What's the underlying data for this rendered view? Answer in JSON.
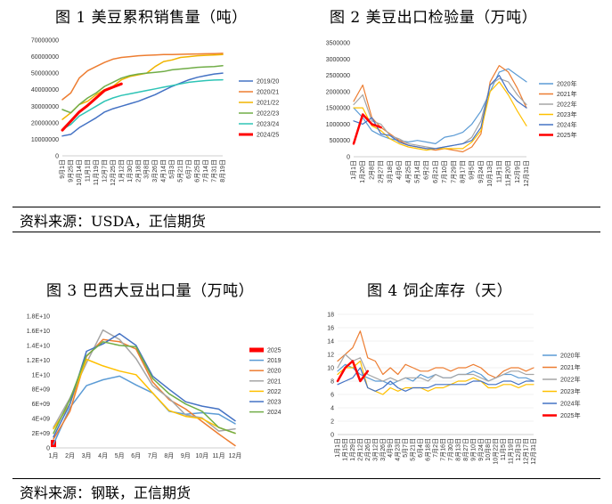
{
  "captions": {
    "fig1": "图 1  美豆累积销售量（吨）",
    "fig2": "图 2  美豆出口检验量（万吨）",
    "fig3": "图 3  巴西大豆出口量（万吨）",
    "fig4": "图 4  饲企库存（天）",
    "source_top": "资料来源：USDA，正信期货",
    "source_bottom": "资料来源：钢联，正信期货"
  },
  "chart_data": [
    {
      "id": "fig1",
      "type": "line",
      "y_ticks": [
        "70000000",
        "60000000",
        "50000000",
        "40000000",
        "30000000",
        "20000000",
        "10000000",
        "0"
      ],
      "ylim": [
        0,
        70000000
      ],
      "x_ticks": [
        "9月1日",
        "9月25日",
        "10月14日",
        "11月1日",
        "11月19日",
        "12月7日",
        "12月25日",
        "1月12日",
        "1月30日",
        "2月18日",
        "3月8日",
        "3月26日",
        "4月14日",
        "5月3日",
        "5月21日",
        "6月7日",
        "6月25日",
        "7月14日",
        "7月31日",
        "8月19日"
      ],
      "legend_position": "right",
      "series": [
        {
          "name": "2019/20",
          "color": "#4472C4",
          "width": 1.5,
          "values": [
            12000000,
            13000000,
            17000000,
            20000000,
            23000000,
            26500000,
            28500000,
            30000000,
            31500000,
            33000000,
            35000000,
            37000000,
            39500000,
            42000000,
            44000000,
            46000000,
            47500000,
            48500000,
            49500000,
            50000000
          ]
        },
        {
          "name": "2020/21",
          "color": "#ED7D31",
          "width": 1.5,
          "values": [
            34000000,
            38000000,
            47000000,
            51500000,
            54000000,
            56500000,
            58500000,
            59500000,
            60000000,
            60500000,
            60800000,
            61000000,
            61200000,
            61300000,
            61400000,
            61500000,
            61600000,
            61700000,
            61800000,
            62000000
          ]
        },
        {
          "name": "2021/22",
          "color": "#F0B400",
          "width": 1.5,
          "values": [
            22000000,
            26000000,
            31000000,
            33000000,
            37000000,
            40000000,
            42000000,
            46000000,
            48000000,
            49000000,
            50000000,
            54000000,
            57000000,
            58000000,
            59500000,
            60000000,
            60500000,
            60800000,
            61000000,
            61200000
          ]
        },
        {
          "name": "2022/23",
          "color": "#70AD47",
          "width": 1.5,
          "values": [
            28000000,
            26000000,
            31000000,
            35000000,
            38000000,
            42000000,
            44500000,
            47000000,
            48500000,
            49500000,
            50000000,
            50500000,
            51000000,
            52000000,
            52500000,
            53000000,
            53500000,
            53800000,
            54000000,
            54500000
          ]
        },
        {
          "name": "2023/24",
          "color": "#2EC4B6",
          "width": 1.5,
          "values": [
            16000000,
            19000000,
            24000000,
            27000000,
            30000000,
            33000000,
            35000000,
            36500000,
            37500000,
            38500000,
            39500000,
            40500000,
            41500000,
            42500000,
            43500000,
            44500000,
            45000000,
            45500000,
            45800000,
            46000000
          ]
        },
        {
          "name": "2024/25",
          "color": "#FF0000",
          "width": 3,
          "values": [
            15500000,
            21000000,
            26500000,
            30500000,
            35000000,
            39500000,
            41500000,
            43500000
          ]
        }
      ]
    },
    {
      "id": "fig2",
      "type": "line",
      "y_ticks": [
        "3500000",
        "3000000",
        "2500000",
        "2000000",
        "1500000",
        "1000000",
        "500000",
        "0"
      ],
      "ylim": [
        0,
        3500000
      ],
      "x_ticks": [
        "1月1日",
        "1月20日",
        "2月8日",
        "2月27日",
        "3月18日",
        "4月6日",
        "4月25日",
        "5月14日",
        "6月2日",
        "6月21日",
        "7月10日",
        "7月29日",
        "8月17日",
        "9月5日",
        "9月24日",
        "10月13日",
        "11月1日",
        "11月20日",
        "12月9日",
        "12月31日"
      ],
      "legend_position": "right",
      "series": [
        {
          "name": "2020年",
          "color": "#5B9BD5",
          "width": 1.2,
          "values": [
            1500000,
            1200000,
            800000,
            650000,
            550000,
            500000,
            450000,
            500000,
            450000,
            400000,
            600000,
            650000,
            750000,
            1000000,
            1400000,
            2000000,
            2600000,
            2700000,
            2500000,
            2300000
          ]
        },
        {
          "name": "2021年",
          "color": "#ED7D31",
          "width": 1.2,
          "values": [
            1700000,
            2200000,
            1200000,
            900000,
            700000,
            500000,
            350000,
            300000,
            250000,
            200000,
            250000,
            200000,
            150000,
            300000,
            700000,
            2300000,
            2800000,
            2600000,
            2100000,
            1500000
          ]
        },
        {
          "name": "2022年",
          "color": "#A5A5A5",
          "width": 1.2,
          "values": [
            1600000,
            1900000,
            1100000,
            1000000,
            650000,
            550000,
            400000,
            350000,
            300000,
            250000,
            300000,
            350000,
            400000,
            600000,
            1100000,
            2200000,
            2400000,
            2300000,
            1900000,
            1600000
          ]
        },
        {
          "name": "2023年",
          "color": "#FFC000",
          "width": 1.2,
          "values": [
            1500000,
            1500000,
            950000,
            800000,
            550000,
            400000,
            300000,
            250000,
            200000,
            250000,
            250000,
            250000,
            250000,
            450000,
            800000,
            2000000,
            2300000,
            1900000,
            1400000,
            950000
          ]
        },
        {
          "name": "2024年",
          "color": "#4472C4",
          "width": 1.2,
          "values": [
            1100000,
            1000000,
            1200000,
            700000,
            650000,
            450000,
            350000,
            300000,
            250000,
            250000,
            300000,
            350000,
            400000,
            500000,
            900000,
            2200000,
            2500000,
            2000000,
            1700000,
            1500000
          ]
        },
        {
          "name": "2025年",
          "color": "#FF0000",
          "width": 2.5,
          "values": [
            400000,
            1300000,
            1000000,
            900000
          ]
        }
      ]
    },
    {
      "id": "fig3",
      "type": "line",
      "y_ticks": [
        "1.8E+10",
        "1.6E+10",
        "1.4E+10",
        "1.2E+10",
        "1E+10",
        "8E+09",
        "6E+09",
        "4E+09",
        "2E+09",
        "0"
      ],
      "ylim": [
        0,
        18000000000
      ],
      "x_ticks": [
        "1月",
        "2月",
        "3月",
        "4月",
        "5月",
        "6月",
        "7月",
        "8月",
        "9月",
        "10月",
        "11月",
        "12月"
      ],
      "legend_position": "right",
      "series": [
        {
          "name": "2025",
          "color": "#FF0000",
          "width": 6,
          "values": [
            600000000
          ]
        },
        {
          "name": "2019",
          "color": "#5B9BD5",
          "width": 1.5,
          "values": [
            500000000,
            5500000000,
            8500000000,
            9300000000,
            9800000000,
            8600000000,
            7500000000,
            5000000000,
            4600000000,
            4800000000,
            4600000000,
            3300000000
          ]
        },
        {
          "name": "2020",
          "color": "#ED7D31",
          "width": 1.5,
          "values": [
            1200000000,
            5000000000,
            12500000000,
            14800000000,
            14500000000,
            13500000000,
            9000000000,
            6600000000,
            5300000000,
            3600000000,
            1900000000,
            300000000
          ]
        },
        {
          "name": "2021",
          "color": "#A5A5A5",
          "width": 1.5,
          "values": [
            2800000000,
            6800000000,
            11600000000,
            16100000000,
            14800000000,
            12200000000,
            8500000000,
            6800000000,
            4500000000,
            4100000000,
            2300000000,
            2600000000
          ]
        },
        {
          "name": "2022",
          "color": "#FFC000",
          "width": 1.5,
          "values": [
            2600000000,
            6000000000,
            12100000000,
            11200000000,
            10500000000,
            10000000000,
            7500000000,
            5100000000,
            4300000000,
            4000000000,
            2800000000,
            2000000000
          ]
        },
        {
          "name": "2023",
          "color": "#4472C4",
          "width": 1.5,
          "values": [
            1500000000,
            6000000000,
            13200000000,
            14200000000,
            15600000000,
            14000000000,
            9800000000,
            8000000000,
            6300000000,
            5700000000,
            5300000000,
            3700000000
          ]
        },
        {
          "name": "2024",
          "color": "#70AD47",
          "width": 1.5,
          "values": [
            2000000000,
            6600000000,
            12600000000,
            14500000000,
            14000000000,
            13800000000,
            9500000000,
            7400000000,
            6000000000,
            5000000000,
            2800000000,
            2000000000
          ]
        }
      ]
    },
    {
      "id": "fig4",
      "type": "line",
      "y_ticks": [
        "18",
        "16",
        "14",
        "12",
        "10",
        "8",
        "6",
        "4",
        "2",
        "0"
      ],
      "ylim": [
        0,
        18
      ],
      "x_ticks": [
        "1月1日",
        "1月15日",
        "1月29日",
        "2月12日",
        "2月26日",
        "3月12日",
        "3月26日",
        "4月9日",
        "4月23日",
        "5月7日",
        "5月21日",
        "6月4日",
        "6月18日",
        "7月2日",
        "7月16日",
        "7月30日",
        "8月13日",
        "8月27日",
        "9月10日",
        "9月24日",
        "10月8日",
        "10月22日",
        "11月5日",
        "11月19日",
        "12月3日",
        "12月17日",
        "12月31日"
      ],
      "legend_position": "right",
      "series": [
        {
          "name": "2020年",
          "color": "#5B9BD5",
          "width": 1.2,
          "values": [
            9.5,
            10.5,
            10,
            9,
            8.5,
            8,
            8,
            7.5,
            8,
            8.5,
            8,
            9,
            8.5,
            9,
            8.5,
            8.5,
            9,
            9,
            9.5,
            9,
            8,
            8.5,
            9,
            9,
            8.5,
            8.5,
            8
          ]
        },
        {
          "name": "2021年",
          "color": "#ED7D31",
          "width": 1.2,
          "values": [
            11,
            12,
            13,
            15.5,
            11.5,
            11,
            9,
            10,
            9,
            10.5,
            10,
            9.5,
            9.5,
            10,
            10,
            9.5,
            10,
            10,
            10.5,
            10,
            9,
            8.5,
            9.5,
            10,
            10,
            9.5,
            10
          ]
        },
        {
          "name": "2022年",
          "color": "#A5A5A5",
          "width": 1.2,
          "values": [
            10,
            12,
            11,
            11.5,
            9,
            8.5,
            8,
            8.5,
            8,
            8.5,
            8.5,
            8.5,
            8,
            9,
            8.5,
            8.5,
            9,
            9,
            9,
            8.5,
            8,
            8.5,
            9,
            9.5,
            9.5,
            9,
            9
          ]
        },
        {
          "name": "2023年",
          "color": "#FFC000",
          "width": 1.2,
          "values": [
            9,
            10,
            10,
            11,
            7,
            6.5,
            6,
            7,
            6.5,
            7,
            7,
            7,
            6.5,
            7,
            7,
            7.5,
            8,
            8,
            8.5,
            8,
            7,
            7,
            7.5,
            7.5,
            7,
            7.5,
            7.5
          ]
        },
        {
          "name": "2024年",
          "color": "#4472C4",
          "width": 1.2,
          "values": [
            7.5,
            8,
            8.5,
            10,
            7,
            6.5,
            7,
            8,
            7,
            6.5,
            7,
            7,
            7,
            7.5,
            7.5,
            7.5,
            7.5,
            7.5,
            8,
            8,
            7.5,
            7.5,
            8,
            8,
            7.5,
            8,
            8
          ]
        },
        {
          "name": "2025年",
          "color": "#FF0000",
          "width": 2.5,
          "values": [
            8,
            10,
            11,
            8,
            9.5
          ]
        }
      ]
    }
  ]
}
